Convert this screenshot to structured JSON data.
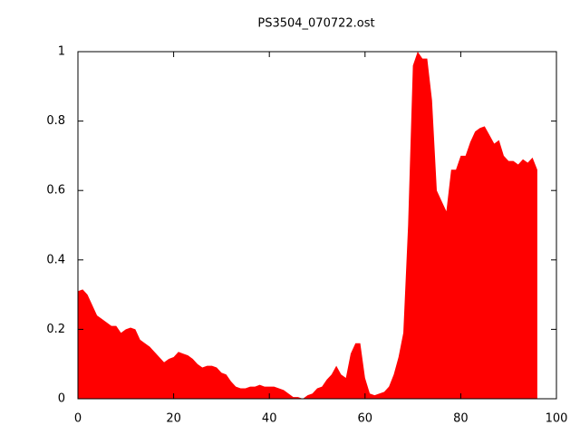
{
  "chart_data": {
    "type": "area",
    "title": "PS3504_070722.ost",
    "color": "#ff0000",
    "x": [
      0,
      1,
      2,
      3,
      4,
      5,
      6,
      7,
      8,
      9,
      10,
      11,
      12,
      13,
      14,
      15,
      16,
      17,
      18,
      19,
      20,
      21,
      22,
      23,
      24,
      25,
      26,
      27,
      28,
      29,
      30,
      31,
      32,
      33,
      34,
      35,
      36,
      37,
      38,
      39,
      40,
      41,
      42,
      43,
      44,
      45,
      46,
      47,
      48,
      49,
      50,
      51,
      52,
      53,
      54,
      55,
      56,
      57,
      58,
      59,
      60,
      61,
      62,
      63,
      64,
      65,
      66,
      67,
      68,
      69,
      70,
      71,
      72,
      73,
      74,
      75,
      76,
      77,
      78,
      79,
      80,
      81,
      82,
      83,
      84,
      85,
      86,
      87,
      88,
      89,
      90,
      91,
      92,
      93,
      94,
      95,
      96
    ],
    "values": [
      0.31,
      0.315,
      0.3,
      0.27,
      0.24,
      0.23,
      0.22,
      0.21,
      0.21,
      0.19,
      0.2,
      0.205,
      0.2,
      0.17,
      0.16,
      0.15,
      0.135,
      0.12,
      0.105,
      0.115,
      0.12,
      0.135,
      0.13,
      0.125,
      0.115,
      0.1,
      0.09,
      0.095,
      0.095,
      0.09,
      0.075,
      0.07,
      0.05,
      0.035,
      0.03,
      0.03,
      0.035,
      0.035,
      0.04,
      0.035,
      0.035,
      0.035,
      0.03,
      0.025,
      0.015,
      0.005,
      0.005,
      0.0,
      0.01,
      0.015,
      0.03,
      0.035,
      0.055,
      0.07,
      0.095,
      0.07,
      0.06,
      0.13,
      0.16,
      0.16,
      0.06,
      0.015,
      0.01,
      0.015,
      0.02,
      0.035,
      0.07,
      0.12,
      0.19,
      0.5,
      0.96,
      1.0,
      0.98,
      0.98,
      0.86,
      0.6,
      0.57,
      0.54,
      0.66,
      0.66,
      0.7,
      0.7,
      0.74,
      0.77,
      0.78,
      0.785,
      0.76,
      0.735,
      0.745,
      0.7,
      0.685,
      0.685,
      0.675,
      0.69,
      0.68,
      0.695,
      0.66
    ],
    "xlim": [
      0,
      100
    ],
    "xticks": [
      0,
      20,
      40,
      60,
      80,
      100
    ],
    "ylim": [
      0,
      1
    ],
    "yticks": [
      0,
      0.2,
      0.4,
      0.6,
      0.8,
      1
    ]
  }
}
